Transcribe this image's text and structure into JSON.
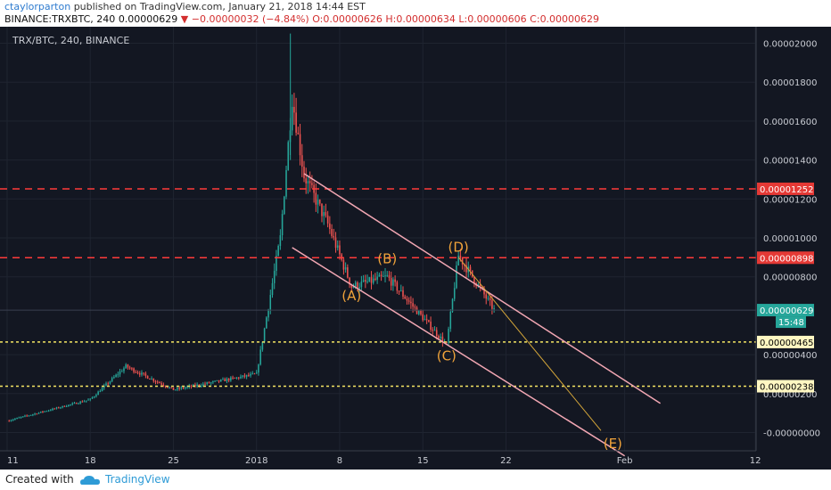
{
  "header": {
    "author": "ctaylorparton",
    "published_text": "published on TradingView.com, January 21, 2018 14:44 EST",
    "symbol": "BINANCE:TRXBTC, 240",
    "last": "0.00000629",
    "change": "−0.00000032 (−4.84%)",
    "ohlc_o_label": "O:",
    "ohlc_o": "0.00000626",
    "ohlc_h_label": "H:",
    "ohlc_h": "0.00000634",
    "ohlc_l_label": "L:",
    "ohlc_l": "0.00000606",
    "ohlc_c_label": "C:",
    "ohlc_c": "0.00000629"
  },
  "footer": {
    "created_with": "Created with",
    "brand": "TradingView"
  },
  "colors": {
    "background": "#131722",
    "up": "#26a69a",
    "down": "#ef5350",
    "resistance": "#ff3b3b",
    "support": "#f5e663",
    "channel": "#f2a7b3",
    "wave_label": "#f0a33a"
  },
  "chart_data": {
    "type": "candlestick",
    "title": "TRX/BTC, 240, BINANCE",
    "x_ticks": [
      "11",
      "18",
      "25",
      "2018",
      "8",
      "15",
      "22",
      "Feb",
      "12"
    ],
    "y_ticks": [
      "0.00002000",
      "0.00001800",
      "0.00001600",
      "0.00001400",
      "0.00001200",
      "0.00001000",
      "0.00000800",
      "0.00000400",
      "0.00000200",
      "-0.00000000"
    ],
    "ylim": [
      -6e-07,
      2.27e-05
    ],
    "horizontal_levels": [
      {
        "value": 1.252e-05,
        "label": "0.00001252",
        "style": "red-dashed"
      },
      {
        "value": 8.98e-06,
        "label": "0.00000898",
        "style": "red-dashed"
      },
      {
        "value": 4.65e-06,
        "label": "0.00000465",
        "style": "yellow-dotted"
      },
      {
        "value": 2.38e-06,
        "label": "0.00000238",
        "style": "yellow-dotted"
      }
    ],
    "last_price": {
      "value": 6.29e-06,
      "label": "0.00000629",
      "countdown": "15:48"
    },
    "wave_labels": [
      {
        "label": "(A)",
        "date": "Jan 9",
        "value": 6.8e-06
      },
      {
        "label": "(B)",
        "date": "Jan 12",
        "value": 8.7e-06
      },
      {
        "label": "(C)",
        "date": "Jan 17",
        "value": 3.7e-06
      },
      {
        "label": "(D)",
        "date": "Jan 18",
        "value": 9.3e-06
      },
      {
        "label": "(E)",
        "date": "Jan 31",
        "value": -8e-07
      }
    ],
    "key_points": [
      {
        "date": "Dec 11",
        "value": 6e-07
      },
      {
        "date": "Dec 18",
        "value": 1.7e-06
      },
      {
        "date": "Dec 21",
        "value": 3.4e-06
      },
      {
        "date": "Dec 25",
        "value": 2.2e-06
      },
      {
        "date": "Jan 1",
        "value": 3e-06
      },
      {
        "date": "Jan 3",
        "value": 1e-05
      },
      {
        "date": "Jan 4",
        "value": 1.72e-05
      },
      {
        "date": "Jan 5",
        "value": 1.32e-05
      },
      {
        "date": "Jan 7",
        "value": 1.07e-05
      },
      {
        "date": "Jan 9",
        "value": 7.5e-06
      },
      {
        "date": "Jan 12",
        "value": 8e-06
      },
      {
        "date": "Jan 17",
        "value": 4.5e-06
      },
      {
        "date": "Jan 18",
        "value": 9.1e-06
      },
      {
        "date": "Jan 21",
        "value": 6.3e-06
      }
    ]
  }
}
